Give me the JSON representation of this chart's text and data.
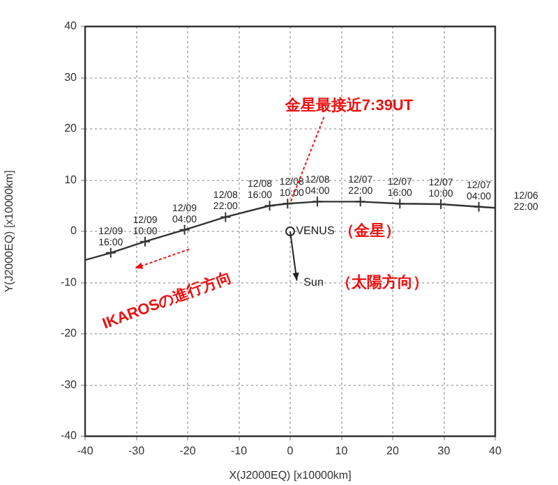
{
  "chart_data": {
    "type": "line",
    "xlabel": "X(J2000EQ) [x10000km]",
    "ylabel": "Y(J2000EQ) [x10000km]",
    "xlim": [
      -40,
      40
    ],
    "ylim": [
      -40,
      40
    ],
    "xticks": [
      -40,
      -30,
      -20,
      -10,
      0,
      10,
      20,
      30,
      40
    ],
    "yticks": [
      -40,
      -30,
      -20,
      -10,
      0,
      10,
      20,
      30,
      40
    ],
    "grid": true,
    "legend": false,
    "series": [
      {
        "color": "#333333",
        "marker": "cross",
        "x": [
          -40,
          -35,
          -28.3,
          -20.6,
          -12.6,
          -4,
          -0.5,
          5.3,
          13.7,
          21.4,
          29.4,
          36.8,
          40
        ],
        "values": [
          -5.6,
          -4.2,
          -2,
          0.3,
          2.8,
          5,
          5.4,
          5.8,
          5.8,
          5.4,
          5.3,
          4.8,
          4.6
        ]
      },
      {
        "type": "scatter",
        "color": "#222222",
        "marker": "circle",
        "x": [
          0
        ],
        "values": [
          0
        ]
      }
    ],
    "annotations": [
      {
        "text": "12/09 16:00",
        "x": -35,
        "y": -4.2
      },
      {
        "text": "12/09 10:00",
        "x": -28.3,
        "y": -2
      },
      {
        "text": "12/09 04:00",
        "x": -20.6,
        "y": 0.3
      },
      {
        "text": "12/08 22:00",
        "x": -12.6,
        "y": 2.8
      },
      {
        "text": "12/08 16:00",
        "x": -4,
        "y": 5
      },
      {
        "text": "12/08 10:00",
        "x": -0.5,
        "y": 5.4
      },
      {
        "text": "12/08 04:00",
        "x": 5.3,
        "y": 5.8
      },
      {
        "text": "12/07 22:00",
        "x": 13.7,
        "y": 5.8
      },
      {
        "text": "12/07 16:00",
        "x": 21.4,
        "y": 5.4
      },
      {
        "text": "12/07 10:00",
        "x": 29.4,
        "y": 5.3
      },
      {
        "text": "12/07 04:00",
        "x": 36.8,
        "y": 4.8
      },
      "12/06 22:00",
      {
        "text": "金星最接近7:39UT",
        "x": 0,
        "y": 5.5
      },
      "VENUS",
      "（金星）",
      "Sun",
      "（太陽方向）",
      "IKAROSの進行方向"
    ]
  }
}
